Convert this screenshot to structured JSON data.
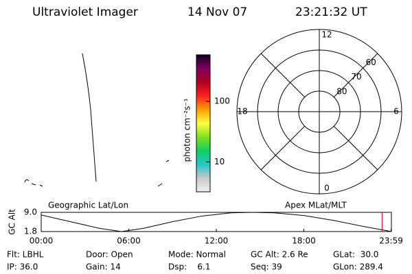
{
  "header": {
    "title": "Ultraviolet Imager",
    "date": "14 Nov 07",
    "time": "23:21:32 UT"
  },
  "colorbar": {
    "label": "photon cm⁻²s⁻¹",
    "log": true,
    "range": [
      3.2,
      590
    ],
    "ticks": [
      100,
      10
    ]
  },
  "polar": {
    "rlim": [
      90,
      50
    ],
    "rings": [
      60,
      70,
      80
    ],
    "mlt_labels": [
      12,
      6,
      0,
      18
    ]
  },
  "timeline": {
    "y_label": "GC Alt",
    "left_label": "Geographic Lat/Lon",
    "right_label": "Apex MLat/MLT",
    "x": [
      0,
      2,
      4,
      5.5,
      7,
      9,
      11,
      13,
      14.5,
      16,
      18,
      20,
      22,
      24
    ],
    "values": [
      8.0,
      5.5,
      3.0,
      1.8,
      3.0,
      5.5,
      7.6,
      8.8,
      9.0,
      8.8,
      7.8,
      6.0,
      3.8,
      1.8
    ],
    "xlim": [
      0,
      24
    ],
    "xticks": [
      {
        "value": 0,
        "label": "00:00"
      },
      {
        "value": 6,
        "label": "06:00"
      },
      {
        "value": 12,
        "label": "12:00"
      },
      {
        "value": 18,
        "label": "18:00"
      },
      {
        "value": 23.98,
        "label": "23:59"
      }
    ],
    "ylim": [
      1.8,
      9.0
    ],
    "yticks": [
      {
        "value": 9.0,
        "label": "9.0"
      },
      {
        "value": 1.8,
        "label": "1.8"
      }
    ],
    "current_time": 23.36,
    "current_color": "#cc0000"
  },
  "info": [
    [
      "Flt: LBHL",
      "Door: Open",
      "Mode: Normal",
      "GC Alt: 2.6 Re",
      "GLat:  30.0"
    ],
    [
      "IP: 36.0",
      "Gain: 14",
      "Dsp:    6.1",
      "Seq: 39",
      "GLon: 289.4"
    ]
  ]
}
